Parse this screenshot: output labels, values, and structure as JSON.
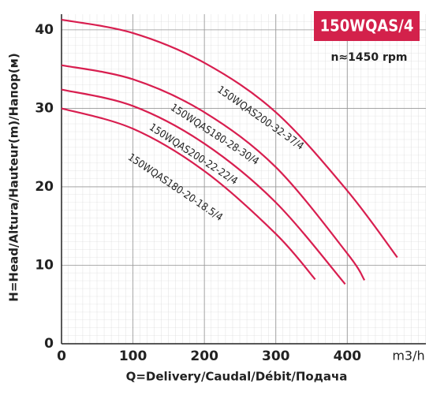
{
  "chart_data": {
    "type": "line",
    "title": "150WQAS/4",
    "subtitle": "n≈1450 rpm",
    "x_label": "Q=Delivery/Caudal/Débit/Подача",
    "x_unit": "m3/h",
    "y_label": "H=Head/Altura/Hauteur(m)/Напор(м)",
    "xlim": [
      0,
      510
    ],
    "ylim": [
      0,
      42
    ],
    "xticks": [
      0,
      100,
      200,
      300,
      400
    ],
    "yticks": [
      0,
      10,
      20,
      30,
      40
    ],
    "grid": true,
    "series": [
      {
        "name": "150WQAS200-32-37/4",
        "color": "#d81e4f",
        "x": [
          0,
          100,
          200,
          300,
          400,
          470
        ],
        "values": [
          41.3,
          39.6,
          35.8,
          29.5,
          19.5,
          11
        ]
      },
      {
        "name": "150WQAS180-28-30/4",
        "color": "#d81e4f",
        "x": [
          0,
          100,
          200,
          300,
          400,
          424
        ],
        "values": [
          35.5,
          33.7,
          29.5,
          22.5,
          11.5,
          8.1
        ]
      },
      {
        "name": "150WQAS200-22-22/4",
        "color": "#d81e4f",
        "x": [
          0,
          100,
          200,
          300,
          397
        ],
        "values": [
          32.4,
          30.3,
          25.5,
          18,
          7.6
        ]
      },
      {
        "name": "150WQAS180-20-18.5/4",
        "color": "#d81e4f",
        "x": [
          0,
          100,
          200,
          300,
          355
        ],
        "values": [
          30,
          27.4,
          22,
          14,
          8.2
        ]
      }
    ]
  }
}
